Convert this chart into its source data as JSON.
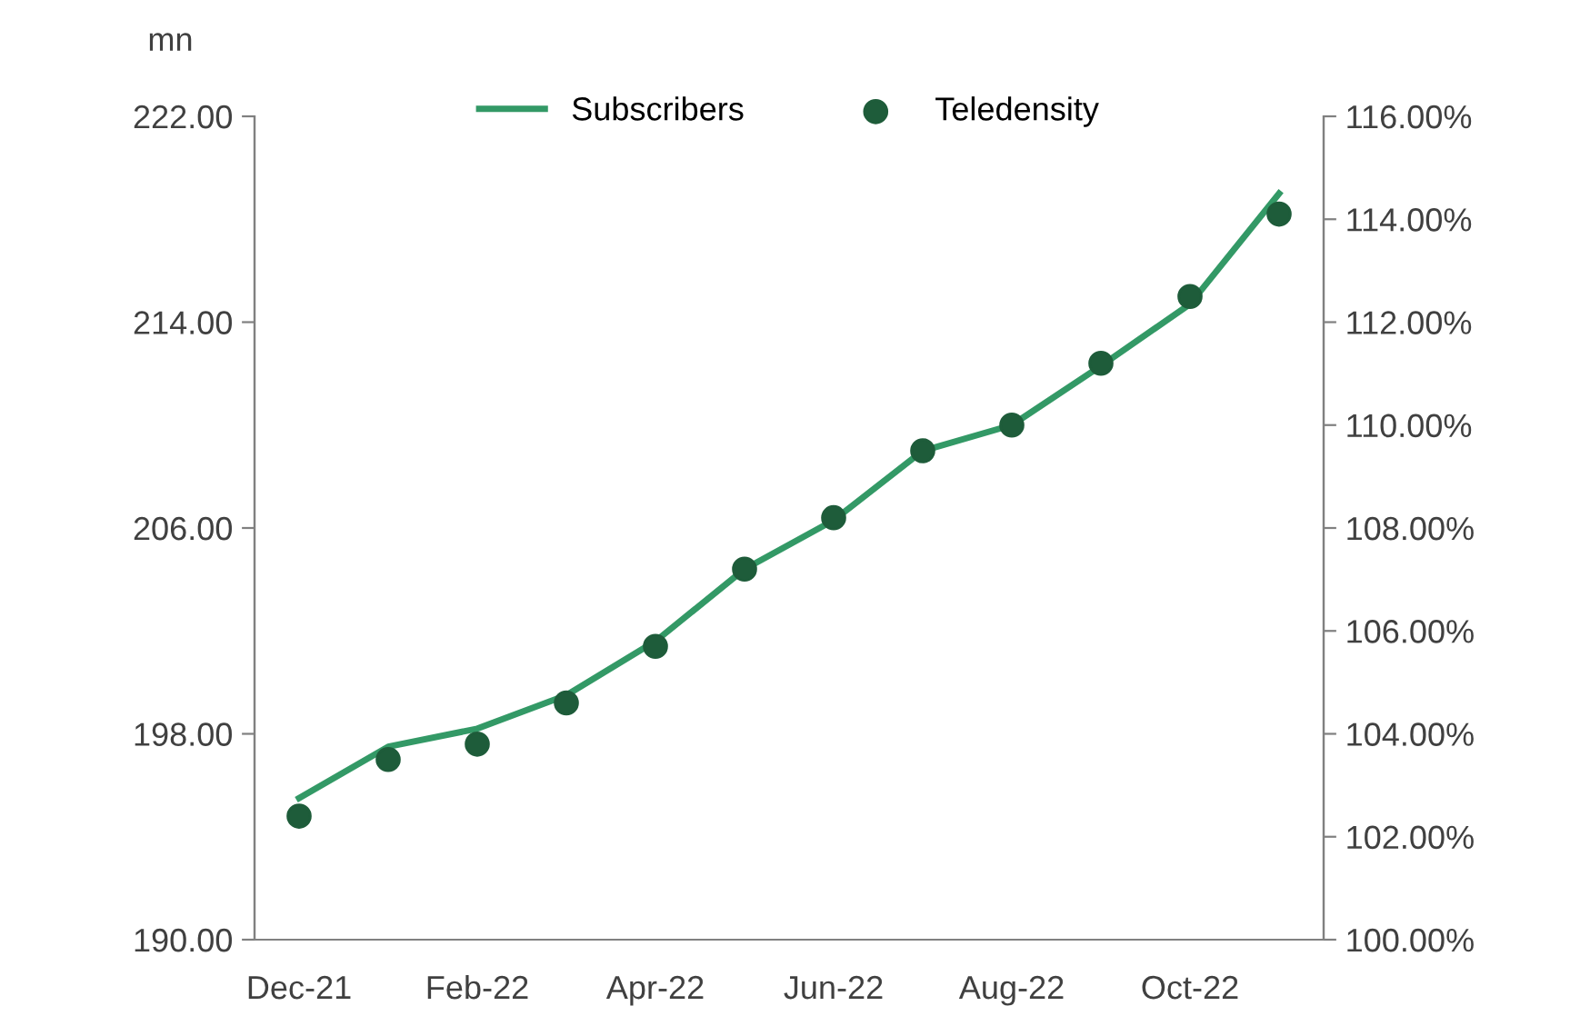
{
  "chart_data": {
    "type": "line",
    "ylabel": "mn",
    "categories": [
      "Dec-21",
      null,
      "Feb-22",
      null,
      "Apr-22",
      null,
      "Jun-22",
      null,
      "Aug-22",
      null,
      "Oct-22",
      null
    ],
    "series": [
      {
        "name": "Subscribers",
        "color": "#339966",
        "marker": "none",
        "line_style": "solid",
        "values": [
          195.5,
          197.5,
          198.2,
          199.5,
          201.6,
          204.4,
          206.3,
          209.0,
          210.0,
          212.3,
          214.7,
          219.0
        ]
      },
      {
        "name": "Teledensity",
        "type": "scatter",
        "axis": "y2",
        "color": "#1e5c3a",
        "marker": "circle",
        "values": [
          102.4,
          103.5,
          103.8,
          104.6,
          105.7,
          107.2,
          108.2,
          109.5,
          110.0,
          111.2,
          112.5,
          114.1
        ]
      }
    ],
    "ylim": [
      190,
      222
    ],
    "yticks": [
      {
        "value": 190,
        "label": "190.00"
      },
      {
        "value": 198,
        "label": "198.00"
      },
      {
        "value": 206,
        "label": "206.00"
      },
      {
        "value": 214,
        "label": "214.00"
      },
      {
        "value": 222,
        "label": "222.00"
      }
    ],
    "y2lim": [
      100,
      116
    ],
    "y2ticks": [
      {
        "value": 100,
        "label": "100.00%"
      },
      {
        "value": 102,
        "label": "102.00%"
      },
      {
        "value": 104,
        "label": "104.00%"
      },
      {
        "value": 106,
        "label": "106.00%"
      },
      {
        "value": 108,
        "label": "108.00%"
      },
      {
        "value": 110,
        "label": "110.00%"
      },
      {
        "value": 112,
        "label": "112.00%"
      },
      {
        "value": 114,
        "label": "114.00%"
      },
      {
        "value": 116,
        "label": "116.00%"
      }
    ],
    "grid": false,
    "legend": "top"
  }
}
